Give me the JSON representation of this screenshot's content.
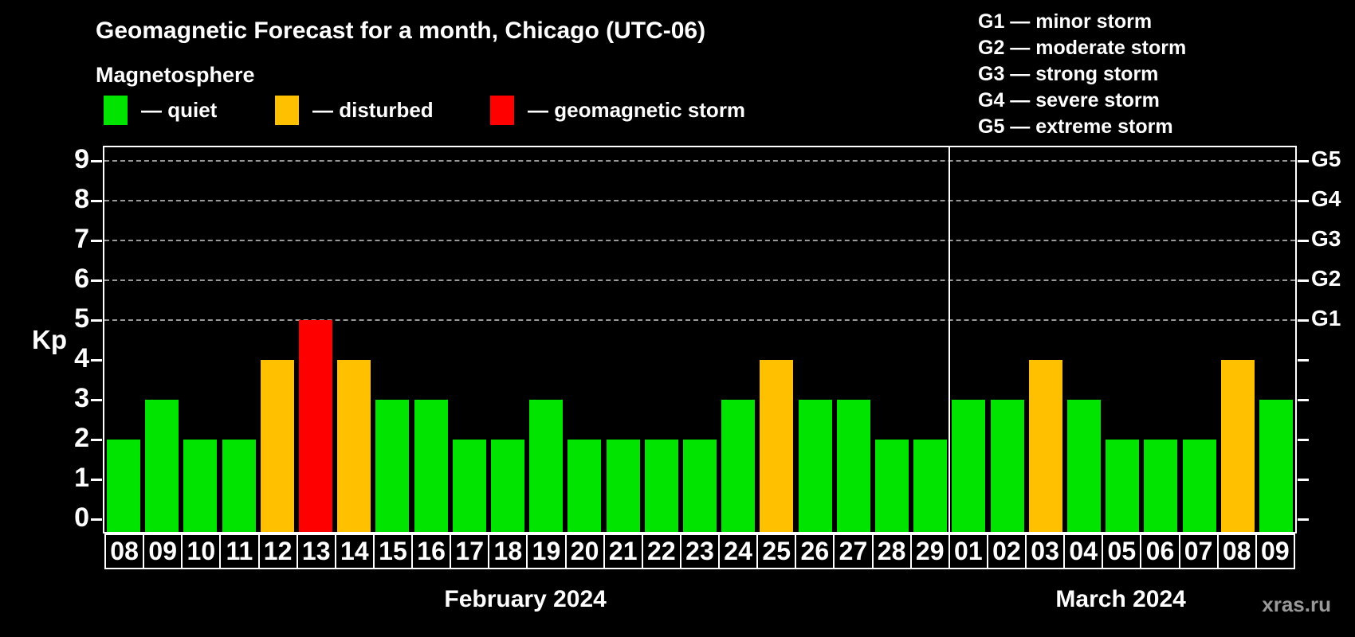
{
  "header": {
    "title": "Geomagnetic Forecast for a month, Chicago (UTC-06)",
    "subtitle": "Magnetosphere"
  },
  "bar_legend": [
    {
      "name": "quiet",
      "color": "#00e400",
      "label": "— quiet"
    },
    {
      "name": "disturbed",
      "color": "#ffc000",
      "label": "— disturbed"
    },
    {
      "name": "storm",
      "color": "#ff0000",
      "label": "— geomagnetic storm"
    }
  ],
  "g_scale_legend": [
    "G1 — minor storm",
    "G2 — moderate storm",
    "G3 — strong storm",
    "G4 — severe storm",
    "G5 — extreme storm"
  ],
  "watermark": "xras.ru",
  "chart_data": {
    "type": "bar",
    "title": "Geomagnetic Forecast for a month, Chicago (UTC-06)",
    "ylabel": "Kp",
    "ylim": [
      0,
      9.3
    ],
    "y_ticks": [
      0,
      1,
      2,
      3,
      4,
      5,
      6,
      7,
      8,
      9
    ],
    "gridlines_at_kp": [
      5,
      6,
      7,
      8,
      9
    ],
    "grid_style": "dashed gray horizontal lines at storm levels only",
    "legend_position": "top",
    "right_axis_labels": [
      {
        "label": "G1",
        "kp": 5
      },
      {
        "label": "G2",
        "kp": 6
      },
      {
        "label": "G3",
        "kp": 7
      },
      {
        "label": "G4",
        "kp": 8
      },
      {
        "label": "G5",
        "kp": 9
      }
    ],
    "bar_colors": {
      "quiet": "#00e400",
      "disturbed": "#ffc000",
      "storm": "#ff0000"
    },
    "color_rule": {
      "quiet_max_kp": 3,
      "disturbed_kp": 4,
      "storm_min_kp": 5
    },
    "months": [
      {
        "label": "February 2024",
        "days": [
          "08",
          "09",
          "10",
          "11",
          "12",
          "13",
          "14",
          "15",
          "16",
          "17",
          "18",
          "19",
          "20",
          "21",
          "22",
          "23",
          "24",
          "25",
          "26",
          "27",
          "28",
          "29"
        ],
        "values": [
          2,
          3,
          2,
          2,
          4,
          5,
          4,
          3,
          3,
          2,
          2,
          3,
          2,
          2,
          2,
          2,
          3,
          4,
          3,
          3,
          2,
          2
        ]
      },
      {
        "label": "March 2024",
        "days": [
          "01",
          "02",
          "03",
          "04",
          "05",
          "06",
          "07",
          "08",
          "09"
        ],
        "values": [
          3,
          3,
          4,
          3,
          2,
          2,
          2,
          4,
          3
        ]
      }
    ]
  }
}
